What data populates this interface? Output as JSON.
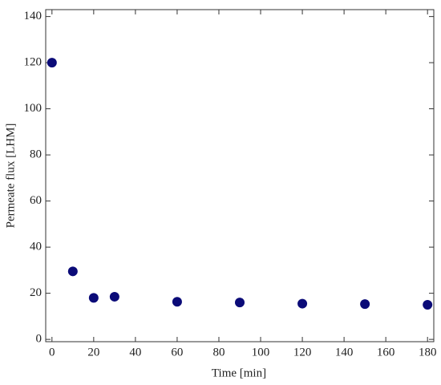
{
  "chart_data": {
    "type": "scatter",
    "x_label": "Time [min]",
    "y_label": "Permeate flux [LHM]",
    "series": [
      {
        "name": "Permeate flux",
        "color": "#0b0b78",
        "x": [
          0,
          10,
          20,
          30,
          60,
          90,
          120,
          150,
          180
        ],
        "values": [
          120,
          29.5,
          18,
          18.5,
          16.3,
          16,
          15.5,
          15.3,
          15
        ]
      }
    ],
    "xlim": [
      -3,
      183
    ],
    "xticks": [
      0,
      20,
      40,
      60,
      80,
      100,
      120,
      140,
      160,
      180
    ],
    "ylim": [
      -1,
      143
    ],
    "yticks": [
      0,
      20,
      40,
      60,
      80,
      100,
      120,
      140
    ]
  }
}
